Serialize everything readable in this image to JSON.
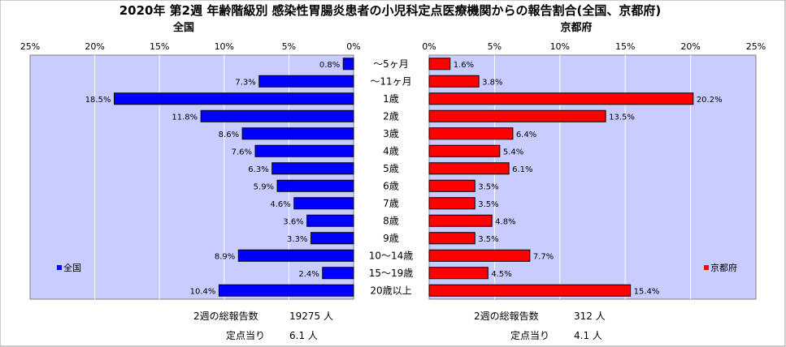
{
  "chart_data": {
    "type": "bar",
    "title": "2020年 第2週 年齢階級別 感染性胃腸炎患者の小児科定点医療機関からの報告割合(全国、京都府)",
    "categories": [
      "～5ヶ月",
      "～11ヶ月",
      "1歳",
      "2歳",
      "3歳",
      "4歳",
      "5歳",
      "6歳",
      "7歳",
      "8歳",
      "9歳",
      "10～14歳",
      "15～19歳",
      "20歳以上"
    ],
    "series": [
      {
        "name": "全国",
        "color": "#0000ff",
        "values": [
          0.8,
          7.3,
          18.5,
          11.8,
          8.6,
          7.6,
          6.3,
          5.9,
          4.6,
          3.6,
          3.3,
          8.9,
          2.4,
          10.4
        ],
        "labels": [
          "0.8%",
          "7.3%",
          "18.5%",
          "11.8%",
          "8.6%",
          "7.6%",
          "6.3%",
          "5.9%",
          "4.6%",
          "3.6%",
          "3.3%",
          "8.9%",
          "2.4%",
          "10.4%"
        ]
      },
      {
        "name": "京都府",
        "color": "#ff0000",
        "values": [
          1.6,
          3.8,
          20.2,
          13.5,
          6.4,
          5.4,
          6.1,
          3.5,
          3.5,
          4.8,
          3.5,
          7.7,
          4.5,
          15.4
        ],
        "labels": [
          "1.6%",
          "3.8%",
          "20.2%",
          "13.5%",
          "6.4%",
          "5.4%",
          "6.1%",
          "3.5%",
          "3.5%",
          "4.8%",
          "3.5%",
          "7.7%",
          "4.5%",
          "15.4%"
        ]
      }
    ],
    "panels": [
      {
        "name": "全国",
        "ticks": [
          "25%",
          "20%",
          "15%",
          "10%",
          "5%",
          "0%"
        ]
      },
      {
        "name": "京都府",
        "ticks": [
          "0%",
          "5%",
          "10%",
          "15%",
          "20%",
          "25%"
        ]
      }
    ],
    "xlim": [
      0,
      25
    ],
    "grid": true,
    "legend": [
      "bottom-left",
      "bottom-right"
    ]
  },
  "summary": {
    "national": {
      "total_label": "2週の総報告数",
      "total_value": "19275 人",
      "per_label": "定点当り",
      "per_value": "6.1 人"
    },
    "kyoto": {
      "total_label": "2週の総報告数",
      "total_value": "312 人",
      "per_label": "定点当り",
      "per_value": "4.1 人"
    }
  },
  "colors": {
    "plot_bg": "#c8ccff",
    "national": "#0000ff",
    "kyoto": "#ff0000"
  }
}
